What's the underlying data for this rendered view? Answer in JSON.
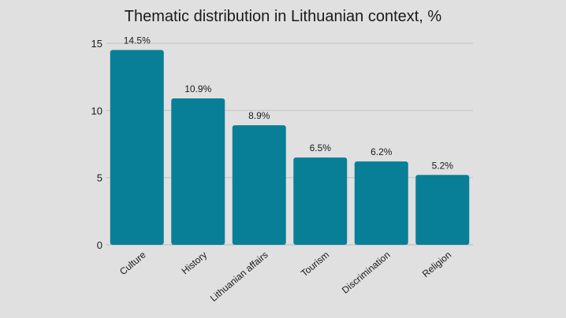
{
  "chart_data": {
    "type": "bar",
    "title": "Thematic distribution in Lithuanian context, %",
    "categories": [
      "Culture",
      "History",
      "Lithuanian affairs",
      "Tourism",
      "Discrimination",
      "Religion"
    ],
    "values": [
      14.5,
      10.9,
      8.9,
      6.5,
      6.2,
      5.2
    ],
    "data_labels": [
      "14.5%",
      "10.9%",
      "8.9%",
      "6.5%",
      "6.2%",
      "5.2%"
    ],
    "xlabel": "",
    "ylabel": "",
    "ylim": [
      0,
      15
    ],
    "yticks": [
      0,
      5,
      10,
      15
    ],
    "grid": true,
    "legend": "none",
    "colors": {
      "bar": "#087f96",
      "background": "#e0e0e0"
    }
  }
}
